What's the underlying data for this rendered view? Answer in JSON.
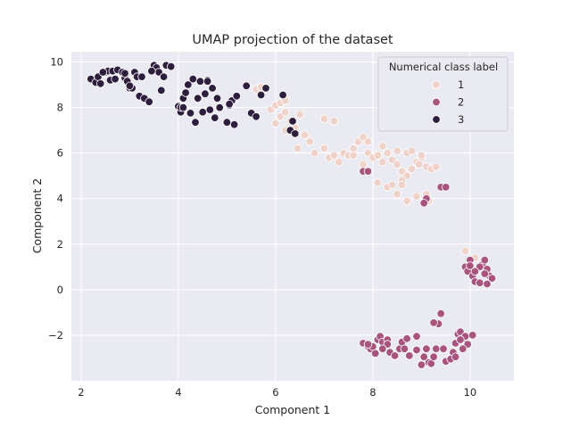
{
  "chart_data": {
    "type": "scatter",
    "title": "UMAP projection of the dataset",
    "xlabel": "Component 1",
    "ylabel": "Component 2",
    "xlim": [
      1.8,
      10.9
    ],
    "ylim": [
      -4.0,
      10.45
    ],
    "xticks": [
      2,
      4,
      6,
      8,
      10
    ],
    "yticks": [
      -2,
      0,
      2,
      4,
      6,
      8,
      10
    ],
    "grid": true,
    "legend": {
      "title": "Numerical class label",
      "placement": "top-right"
    },
    "series": [
      {
        "name": "1",
        "color": "#efd3cb",
        "points": [
          [
            5.6,
            8.8
          ],
          [
            5.7,
            8.9
          ],
          [
            5.9,
            7.9
          ],
          [
            6.0,
            8.1
          ],
          [
            6.1,
            8.2
          ],
          [
            6.2,
            8.3
          ],
          [
            6.3,
            7.4
          ],
          [
            6.1,
            7.6
          ],
          [
            6.2,
            7.0
          ],
          [
            6.4,
            7.1
          ],
          [
            6.5,
            7.7
          ],
          [
            6.6,
            6.8
          ],
          [
            6.7,
            6.5
          ],
          [
            6.45,
            6.2
          ],
          [
            6.0,
            7.3
          ],
          [
            6.2,
            7.8
          ],
          [
            7.0,
            7.5
          ],
          [
            7.2,
            7.4
          ],
          [
            6.8,
            6.0
          ],
          [
            7.0,
            6.2
          ],
          [
            7.1,
            5.8
          ],
          [
            7.2,
            5.9
          ],
          [
            7.3,
            5.6
          ],
          [
            7.4,
            6.0
          ],
          [
            7.5,
            5.9
          ],
          [
            7.6,
            6.2
          ],
          [
            7.7,
            6.5
          ],
          [
            7.6,
            5.9
          ],
          [
            7.8,
            6.7
          ],
          [
            7.9,
            6.5
          ],
          [
            7.9,
            6.0
          ],
          [
            7.8,
            5.5
          ],
          [
            8.0,
            5.8
          ],
          [
            8.1,
            5.9
          ],
          [
            8.2,
            6.3
          ],
          [
            8.3,
            6.0
          ],
          [
            8.2,
            5.6
          ],
          [
            8.4,
            5.7
          ],
          [
            8.5,
            5.5
          ],
          [
            8.5,
            6.1
          ],
          [
            8.6,
            5.2
          ],
          [
            8.7,
            5.0
          ],
          [
            8.8,
            5.3
          ],
          [
            8.9,
            5.6
          ],
          [
            9.0,
            5.8
          ],
          [
            9.1,
            5.4
          ],
          [
            9.2,
            5.3
          ],
          [
            9.3,
            5.4
          ],
          [
            9.0,
            5.9
          ],
          [
            8.7,
            6.0
          ],
          [
            8.8,
            6.1
          ],
          [
            8.1,
            4.7
          ],
          [
            8.3,
            4.5
          ],
          [
            8.4,
            4.6
          ],
          [
            8.6,
            4.8
          ],
          [
            8.5,
            4.2
          ],
          [
            8.7,
            3.9
          ],
          [
            8.9,
            4.1
          ],
          [
            9.1,
            4.2
          ],
          [
            9.15,
            3.9
          ],
          [
            8.6,
            4.6
          ],
          [
            8.95,
            5.5
          ],
          [
            9.9,
            1.7
          ],
          [
            10.1,
            1.4
          ]
        ]
      },
      {
        "name": "2",
        "color": "#a7547e",
        "points": [
          [
            7.8,
            5.2
          ],
          [
            7.9,
            5.2
          ],
          [
            9.4,
            4.5
          ],
          [
            9.5,
            4.5
          ],
          [
            9.1,
            4.0
          ],
          [
            9.05,
            3.8
          ],
          [
            9.9,
            1.0
          ],
          [
            10.0,
            1.3
          ],
          [
            9.95,
            0.8
          ],
          [
            10.05,
            0.6
          ],
          [
            10.1,
            0.35
          ],
          [
            10.2,
            0.3
          ],
          [
            10.25,
            1.1
          ],
          [
            10.3,
            1.3
          ],
          [
            10.35,
            0.9
          ],
          [
            10.4,
            0.6
          ],
          [
            10.45,
            0.5
          ],
          [
            10.35,
            0.25
          ],
          [
            10.2,
            1.0
          ],
          [
            10.1,
            0.8
          ],
          [
            10.0,
            1.05
          ],
          [
            10.3,
            0.7
          ],
          [
            7.8,
            -2.35
          ],
          [
            7.9,
            -2.5
          ],
          [
            7.95,
            -2.6
          ],
          [
            8.0,
            -2.5
          ],
          [
            8.05,
            -2.8
          ],
          [
            8.1,
            -2.2
          ],
          [
            8.15,
            -2.05
          ],
          [
            8.2,
            -2.3
          ],
          [
            8.3,
            -2.2
          ],
          [
            8.35,
            -2.75
          ],
          [
            8.45,
            -2.9
          ],
          [
            8.55,
            -2.6
          ],
          [
            8.6,
            -2.3
          ],
          [
            8.7,
            -2.15
          ],
          [
            8.75,
            -2.9
          ],
          [
            8.9,
            -2.65
          ],
          [
            9.0,
            -3.3
          ],
          [
            9.05,
            -2.95
          ],
          [
            9.1,
            -2.6
          ],
          [
            9.15,
            -3.2
          ],
          [
            9.2,
            -3.25
          ],
          [
            9.25,
            -2.95
          ],
          [
            9.3,
            -2.6
          ],
          [
            9.35,
            -1.5
          ],
          [
            9.4,
            -1.05
          ],
          [
            9.5,
            -3.15
          ],
          [
            9.6,
            -3.05
          ],
          [
            9.65,
            -2.75
          ],
          [
            9.7,
            -2.35
          ],
          [
            9.75,
            -1.95
          ],
          [
            9.8,
            -1.85
          ],
          [
            9.85,
            -2.15
          ],
          [
            9.9,
            -2.05
          ],
          [
            9.95,
            -2.4
          ],
          [
            10.05,
            -2.0
          ],
          [
            9.7,
            -2.95
          ],
          [
            9.45,
            -2.6
          ],
          [
            9.1,
            -2.6
          ],
          [
            8.65,
            -2.6
          ],
          [
            8.9,
            -2.05
          ],
          [
            8.3,
            -2.4
          ],
          [
            9.8,
            -2.2
          ],
          [
            9.85,
            -2.6
          ],
          [
            7.9,
            -2.4
          ],
          [
            9.25,
            -1.45
          ],
          [
            8.2,
            -2.6
          ]
        ]
      },
      {
        "name": "3",
        "color": "#2d1e3e",
        "points": [
          [
            2.2,
            9.25
          ],
          [
            2.3,
            9.1
          ],
          [
            2.35,
            9.35
          ],
          [
            2.4,
            9.05
          ],
          [
            2.5,
            9.55
          ],
          [
            2.55,
            9.6
          ],
          [
            2.6,
            9.2
          ],
          [
            2.65,
            9.6
          ],
          [
            2.7,
            9.25
          ],
          [
            2.75,
            9.65
          ],
          [
            2.85,
            9.55
          ],
          [
            2.9,
            9.3
          ],
          [
            2.95,
            9.15
          ],
          [
            3.0,
            8.85
          ],
          [
            3.05,
            8.85
          ],
          [
            3.1,
            9.55
          ],
          [
            3.15,
            9.35
          ],
          [
            3.2,
            8.5
          ],
          [
            3.25,
            9.35
          ],
          [
            3.3,
            8.4
          ],
          [
            3.4,
            8.25
          ],
          [
            3.5,
            9.85
          ],
          [
            3.55,
            9.75
          ],
          [
            3.6,
            9.55
          ],
          [
            3.65,
            8.75
          ],
          [
            3.7,
            9.35
          ],
          [
            3.75,
            9.85
          ],
          [
            3.85,
            9.8
          ],
          [
            4.0,
            8.05
          ],
          [
            4.05,
            7.8
          ],
          [
            4.1,
            8.4
          ],
          [
            4.15,
            8.65
          ],
          [
            4.2,
            9.0
          ],
          [
            4.25,
            7.75
          ],
          [
            4.3,
            9.25
          ],
          [
            4.35,
            7.35
          ],
          [
            4.4,
            8.4
          ],
          [
            4.45,
            9.15
          ],
          [
            4.5,
            7.8
          ],
          [
            4.55,
            8.6
          ],
          [
            4.6,
            9.2
          ],
          [
            4.65,
            7.9
          ],
          [
            4.7,
            8.85
          ],
          [
            4.75,
            7.55
          ],
          [
            4.8,
            8.4
          ],
          [
            4.85,
            8.0
          ],
          [
            5.0,
            7.35
          ],
          [
            5.05,
            8.1
          ],
          [
            5.1,
            8.3
          ],
          [
            5.15,
            7.25
          ],
          [
            5.2,
            8.5
          ],
          [
            5.4,
            8.95
          ],
          [
            5.5,
            7.75
          ],
          [
            5.6,
            7.6
          ],
          [
            5.7,
            8.55
          ],
          [
            5.8,
            8.85
          ],
          [
            6.15,
            8.55
          ],
          [
            6.3,
            7.0
          ],
          [
            6.35,
            7.4
          ],
          [
            6.4,
            6.85
          ],
          [
            4.05,
            8.0
          ],
          [
            3.0,
            8.95
          ],
          [
            2.45,
            9.55
          ],
          [
            4.1,
            8.0
          ],
          [
            4.6,
            9.15
          ],
          [
            5.05,
            8.15
          ],
          [
            3.45,
            9.6
          ],
          [
            2.9,
            9.5
          ]
        ]
      }
    ]
  }
}
